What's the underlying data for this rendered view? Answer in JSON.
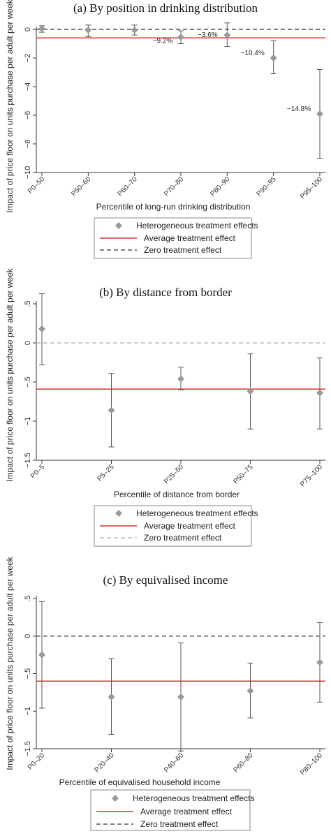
{
  "colors": {
    "point": "#999999",
    "ci": "#555555",
    "average": "#e03030",
    "zero_dark": "#555555",
    "zero_light": "#bbbbbb"
  },
  "legend_labels": {
    "hte": "Heterogeneous treatment effects",
    "avg": "Average treatment effect",
    "zero": "Zero treatment effect"
  },
  "chart_data": [
    {
      "type": "scatter",
      "title": "(a) By position in drinking distribution",
      "xlabel": "Percentile of long-run drinking distribution",
      "ylabel": "Impact of price floor on units purchase per adult per week",
      "ylim": [
        -10,
        0
      ],
      "yticks": [
        0,
        -2,
        -4,
        -6,
        -8,
        -10
      ],
      "categories": [
        "P0–50",
        "P50–60",
        "P60–70",
        "P70–80",
        "P80–90",
        "P90–95",
        "P95–100"
      ],
      "values": [
        0.05,
        -0.05,
        -0.05,
        -0.55,
        -0.4,
        -2.0,
        -5.9
      ],
      "ci_low": [
        -0.2,
        -0.5,
        -0.4,
        -1.0,
        -1.2,
        -3.1,
        -9.0
      ],
      "ci_high": [
        0.25,
        0.3,
        0.3,
        -0.1,
        0.45,
        -0.8,
        -2.8
      ],
      "annotations": [
        "",
        "",
        "",
        "−9.2%",
        "−3.6%",
        "−10.4%",
        "−14.8%"
      ],
      "average": -0.6,
      "zero": 0,
      "zero_style": "dark",
      "grid": false,
      "legend": "bottom"
    },
    {
      "type": "scatter",
      "title": "(b) By distance from border",
      "xlabel": "Percentile of distance from border",
      "ylabel": "Impact of price floor on units purchase per adult per week",
      "ylim": [
        -1.5,
        0.5
      ],
      "yticks": [
        0.5,
        0,
        -0.5,
        -1,
        -1.5
      ],
      "categories": [
        "P0–5",
        "P5–25",
        "P25–50",
        "P50–75",
        "P75–100"
      ],
      "values": [
        0.18,
        -0.86,
        -0.46,
        -0.62,
        -0.64
      ],
      "ci_low": [
        -0.28,
        -1.33,
        -0.6,
        -1.1,
        -1.1
      ],
      "ci_high": [
        0.63,
        -0.39,
        -0.31,
        -0.14,
        -0.19
      ],
      "annotations": [],
      "average": -0.59,
      "zero": 0,
      "zero_style": "light",
      "grid": false,
      "legend": "bottom"
    },
    {
      "type": "scatter",
      "title": "(c) By equivalised income",
      "xlabel": "Percentile of  equivalised household income",
      "ylabel": "Impact of price floor on units purchase per adult per week",
      "ylim": [
        -1.5,
        0.5
      ],
      "yticks": [
        0.5,
        0,
        -0.5,
        -1,
        -1.5
      ],
      "categories": [
        "P0–20",
        "P20–40",
        "P40–60",
        "P60–80",
        "P80–100"
      ],
      "values": [
        -0.25,
        -0.81,
        -0.81,
        -0.73,
        -0.35
      ],
      "ci_low": [
        -0.96,
        -1.31,
        -1.53,
        -1.09,
        -0.88
      ],
      "ci_high": [
        0.46,
        -0.3,
        -0.09,
        -0.36,
        0.18
      ],
      "annotations": [],
      "average": -0.6,
      "zero": 0,
      "zero_style": "dark",
      "grid": false,
      "legend": "bottom"
    }
  ]
}
